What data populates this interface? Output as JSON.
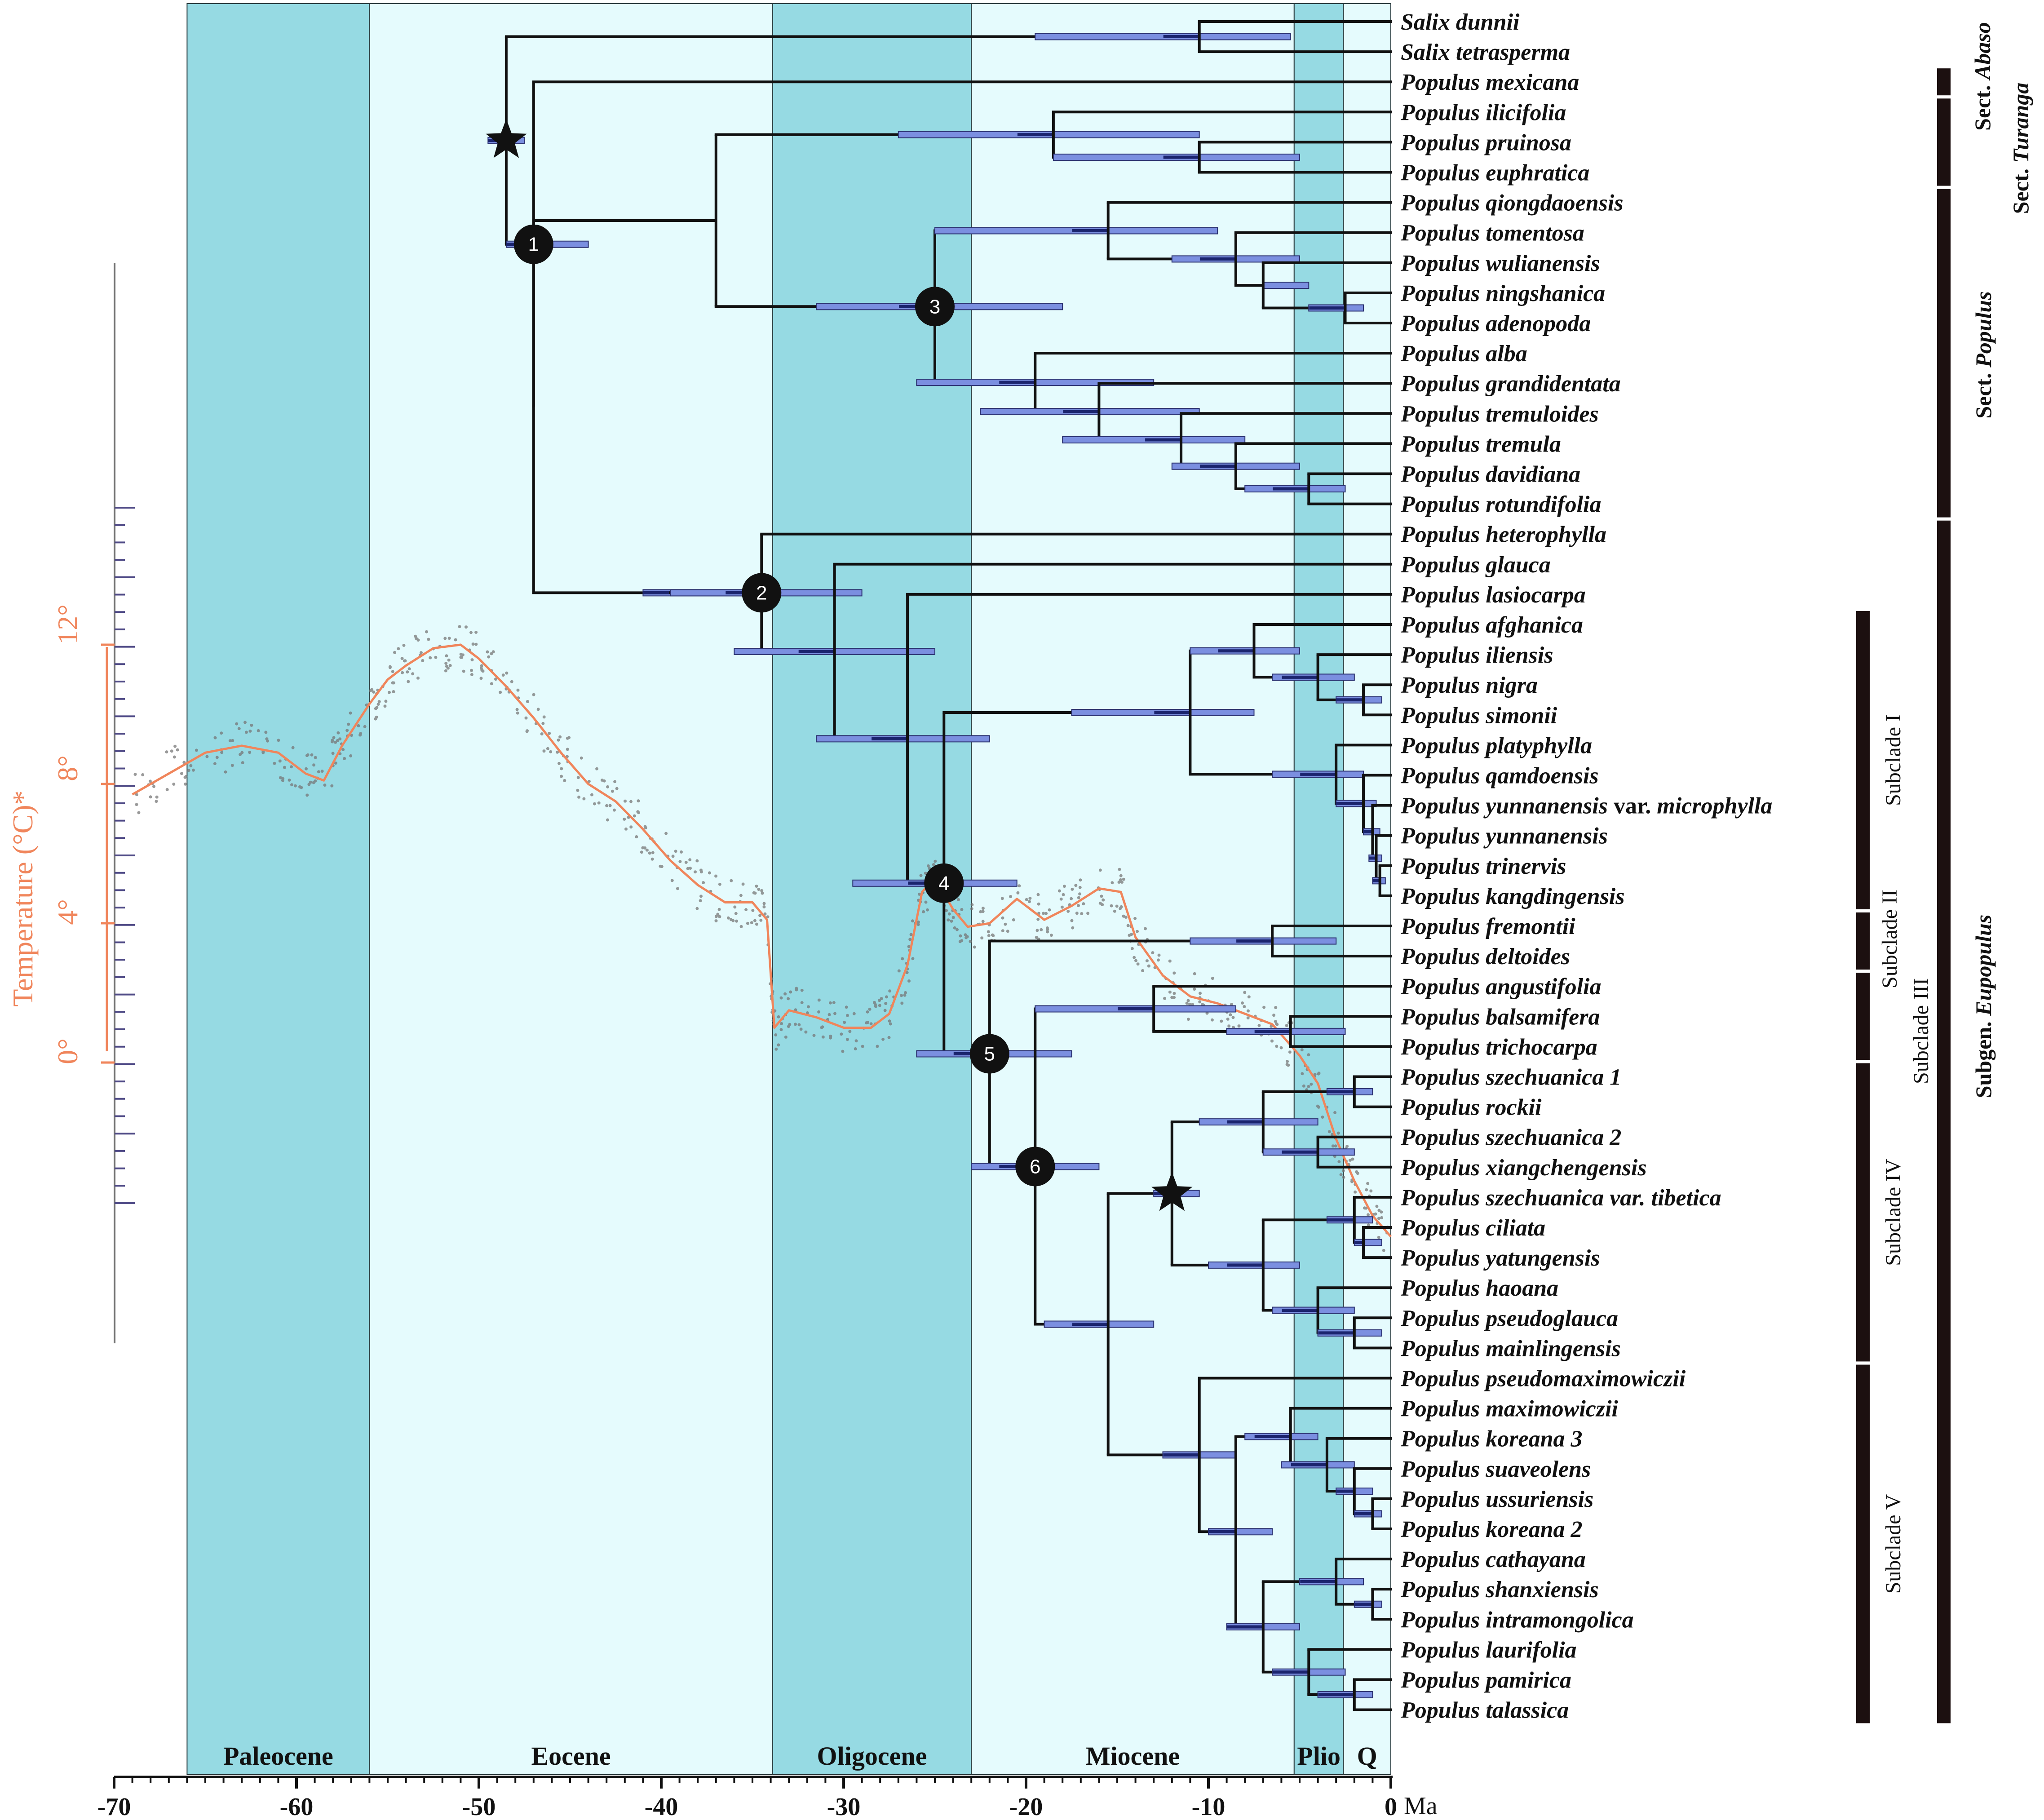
{
  "epochs": [
    {
      "name": "Paleocene",
      "start": -66,
      "end": -56,
      "shade": "dark"
    },
    {
      "name": "Eocene",
      "start": -56,
      "end": -33.9,
      "shade": "light"
    },
    {
      "name": "Oligocene",
      "start": -33.9,
      "end": -23.0,
      "shade": "dark"
    },
    {
      "name": "Miocene",
      "start": -23.0,
      "end": -5.3,
      "shade": "light"
    },
    {
      "name": "Plio",
      "start": -5.3,
      "end": -2.6,
      "shade": "dark"
    },
    {
      "name": "Q",
      "start": -2.6,
      "end": 0,
      "shade": "light"
    }
  ],
  "axis": {
    "unit": "Ma",
    "ticks": [
      -70,
      -60,
      -50,
      -40,
      -30,
      -20,
      -10,
      0
    ],
    "tick_labels": [
      "-70",
      "-60",
      "-50",
      "-40",
      "-30",
      "-20",
      "-10",
      "0"
    ]
  },
  "temperature": {
    "title": "Temperature (°C)*",
    "tick_labels": [
      "0°",
      "4°",
      "8°",
      "12°"
    ],
    "tick_values": [
      0,
      4,
      8,
      12
    ],
    "curve": [
      [
        -69,
        7.7
      ],
      [
        -67,
        8.3
      ],
      [
        -65,
        8.9
      ],
      [
        -63,
        9.1
      ],
      [
        -61,
        8.9
      ],
      [
        -59.5,
        8.3
      ],
      [
        -58.5,
        8.1
      ],
      [
        -57.5,
        9.1
      ],
      [
        -56,
        10.3
      ],
      [
        -55,
        11.0
      ],
      [
        -54,
        11.4
      ],
      [
        -52.5,
        11.9
      ],
      [
        -51,
        12.0
      ],
      [
        -50,
        11.6
      ],
      [
        -48.5,
        10.8
      ],
      [
        -47,
        9.9
      ],
      [
        -45.5,
        8.9
      ],
      [
        -44,
        8.0
      ],
      [
        -42.5,
        7.5
      ],
      [
        -41,
        6.7
      ],
      [
        -39.5,
        5.8
      ],
      [
        -38,
        5.1
      ],
      [
        -36.5,
        4.6
      ],
      [
        -35,
        4.6
      ],
      [
        -34.2,
        4.1
      ],
      [
        -33.8,
        1.0
      ],
      [
        -33,
        1.5
      ],
      [
        -31.5,
        1.3
      ],
      [
        -30,
        1.0
      ],
      [
        -28.5,
        1.0
      ],
      [
        -27.5,
        1.4
      ],
      [
        -26.5,
        2.8
      ],
      [
        -25.7,
        4.9
      ],
      [
        -25,
        5.3
      ],
      [
        -24,
        4.4
      ],
      [
        -23.2,
        3.9
      ],
      [
        -22,
        4.0
      ],
      [
        -20.5,
        4.7
      ],
      [
        -19,
        4.1
      ],
      [
        -17.5,
        4.5
      ],
      [
        -16,
        5.0
      ],
      [
        -14.8,
        4.9
      ],
      [
        -14,
        3.6
      ],
      [
        -12.5,
        2.5
      ],
      [
        -11,
        1.9
      ],
      [
        -9.5,
        1.7
      ],
      [
        -8,
        1.4
      ],
      [
        -6.5,
        1.1
      ],
      [
        -5,
        0.2
      ],
      [
        -4,
        -0.6
      ],
      [
        -3,
        -2.2
      ],
      [
        -2,
        -3.4
      ],
      [
        -1,
        -4.4
      ],
      [
        0,
        -5.0
      ]
    ]
  },
  "taxa": [
    {
      "name": "Salix dunnii"
    },
    {
      "name": "Salix tetrasperma"
    },
    {
      "name": "Populus mexicana"
    },
    {
      "name": "Populus ilicifolia"
    },
    {
      "name": "Populus pruinosa"
    },
    {
      "name": "Populus euphratica"
    },
    {
      "name": "Populus qiongdaoensis"
    },
    {
      "name": "Populus tomentosa"
    },
    {
      "name": "Populus wulianensis"
    },
    {
      "name": "Populus ningshanica"
    },
    {
      "name": "Populus adenopoda"
    },
    {
      "name": "Populus alba"
    },
    {
      "name": "Populus grandidentata"
    },
    {
      "name": "Populus tremuloides"
    },
    {
      "name": "Populus tremula"
    },
    {
      "name": "Populus davidiana"
    },
    {
      "name": "Populus rotundifolia"
    },
    {
      "name": "Populus heterophylla"
    },
    {
      "name": "Populus glauca"
    },
    {
      "name": "Populus lasiocarpa"
    },
    {
      "name": "Populus afghanica"
    },
    {
      "name": "Populus iliensis"
    },
    {
      "name": "Populus nigra"
    },
    {
      "name": "Populus simonii"
    },
    {
      "name": "Populus platyphylla"
    },
    {
      "name": "Populus qamdoensis"
    },
    {
      "name": "Populus yunnanensis",
      "extra": " var. ",
      "extra2": "microphylla"
    },
    {
      "name": "Populus yunnanensis"
    },
    {
      "name": "Populus trinervis"
    },
    {
      "name": "Populus kangdingensis"
    },
    {
      "name": "Populus fremontii"
    },
    {
      "name": "Populus deltoides"
    },
    {
      "name": "Populus angustifolia"
    },
    {
      "name": "Populus balsamifera"
    },
    {
      "name": "Populus trichocarpa"
    },
    {
      "name": "Populus szechuanica 1"
    },
    {
      "name": "Populus rockii"
    },
    {
      "name": "Populus szechuanica 2"
    },
    {
      "name": "Populus xiangchengensis"
    },
    {
      "name": "Populus szechuanica var. tibetica"
    },
    {
      "name": "Populus ciliata"
    },
    {
      "name": "Populus yatungensis"
    },
    {
      "name": "Populus haoana"
    },
    {
      "name": "Populus pseudoglauca"
    },
    {
      "name": "Populus mainlingensis"
    },
    {
      "name": "Populus pseudomaximowiczii"
    },
    {
      "name": "Populus maximowiczii"
    },
    {
      "name": "Populus koreana 3"
    },
    {
      "name": "Populus suaveolens"
    },
    {
      "name": "Populus ussuriensis"
    },
    {
      "name": "Populus koreana 2"
    },
    {
      "name": "Populus cathayana"
    },
    {
      "name": "Populus shanxiensis"
    },
    {
      "name": "Populus intramongolica"
    },
    {
      "name": "Populus laurifolia"
    },
    {
      "name": "Populus pamirica"
    },
    {
      "name": "Populus talassica"
    }
  ],
  "tree": {
    "nodes": [
      {
        "id": "root",
        "age": -48.5,
        "c": [
          "n_sal",
          "n1"
        ],
        "bar": [
          -49.5,
          -47.5
        ],
        "marker": "star"
      },
      {
        "id": "n_sal",
        "age": -10.5,
        "c": [
          0,
          1
        ],
        "bar": [
          -19.5,
          -5.5
        ]
      },
      {
        "id": "n1",
        "age": -47.0,
        "c": [
          2,
          "n1b"
        ],
        "bar": [
          -48.5,
          -44.0
        ],
        "marker": "1"
      },
      {
        "id": "n1b",
        "age": -47.0,
        "c": [
          "nT",
          "nP"
        ]
      },
      {
        "id": "nT",
        "age": -37.0,
        "c": [
          "nTur",
          "n3"
        ]
      },
      {
        "id": "nTur",
        "age": -18.5,
        "c": [
          3,
          "nTur2"
        ],
        "bar": [
          -27.0,
          -10.5
        ]
      },
      {
        "id": "nTur2",
        "age": -10.5,
        "c": [
          4,
          5
        ],
        "bar": [
          -18.5,
          -5.0
        ]
      },
      {
        "id": "n3",
        "age": -25.0,
        "c": [
          "nA",
          "nB"
        ],
        "bar": [
          -31.5,
          -18.0
        ],
        "marker": "3"
      },
      {
        "id": "nA",
        "age": -15.5,
        "c": [
          6,
          "nA2"
        ],
        "bar": [
          -25.0,
          -9.5
        ]
      },
      {
        "id": "nA2",
        "age": -8.5,
        "c": [
          7,
          "nA3"
        ],
        "bar": [
          -12.0,
          -5.0
        ]
      },
      {
        "id": "nA3",
        "age": -7.0,
        "c": [
          8,
          "nA4"
        ],
        "bar": [
          -7.0,
          -4.5
        ]
      },
      {
        "id": "nA4",
        "age": -2.5,
        "c": [
          9,
          10
        ],
        "bar": [
          -4.5,
          -1.5
        ]
      },
      {
        "id": "nB",
        "age": -19.5,
        "c": [
          11,
          "nB2"
        ],
        "bar": [
          -26.0,
          -13.0
        ]
      },
      {
        "id": "nB2",
        "age": -16.0,
        "c": [
          12,
          "nB3"
        ],
        "bar": [
          -22.5,
          -10.5
        ]
      },
      {
        "id": "nB3",
        "age": -11.5,
        "c": [
          13,
          "nB4"
        ],
        "bar": [
          -18.0,
          -8.0
        ]
      },
      {
        "id": "nB4",
        "age": -8.5,
        "c": [
          14,
          "nB5"
        ],
        "bar": [
          -12.0,
          -5.0
        ]
      },
      {
        "id": "nB5",
        "age": -4.5,
        "c": [
          15,
          16
        ],
        "bar": [
          -8.0,
          -2.5
        ]
      },
      {
        "id": "nP",
        "age": -39.5,
        "c": [
          "n2"
        ],
        "bar": [
          -41.0,
          -34.5
        ]
      },
      {
        "id": "n2",
        "age": -34.5,
        "c": [
          17,
          "n2b"
        ],
        "bar": [
          -39.5,
          -29.0
        ],
        "marker": "2"
      },
      {
        "id": "n2b",
        "age": -30.5,
        "c": [
          18,
          "n2c"
        ],
        "bar": [
          -36.0,
          -25.0
        ]
      },
      {
        "id": "n2c",
        "age": -26.5,
        "c": [
          19,
          "n4"
        ],
        "bar": [
          -31.5,
          -22.0
        ]
      },
      {
        "id": "n4",
        "age": -24.5,
        "c": [
          "nI",
          "n5"
        ],
        "bar": [
          -29.5,
          -20.5
        ],
        "marker": "4"
      },
      {
        "id": "nI",
        "age": -11.0,
        "c": [
          "nIa",
          "nIb"
        ],
        "bar": [
          -17.5,
          -7.5
        ]
      },
      {
        "id": "nIa",
        "age": -7.5,
        "c": [
          20,
          "nIa2"
        ],
        "bar": [
          -11.0,
          -5.0
        ]
      },
      {
        "id": "nIa2",
        "age": -4.0,
        "c": [
          21,
          "nIa3"
        ],
        "bar": [
          -6.5,
          -2.0
        ]
      },
      {
        "id": "nIa3",
        "age": -1.5,
        "c": [
          22,
          23
        ],
        "bar": [
          -3.0,
          -0.5
        ]
      },
      {
        "id": "nIb",
        "age": -3.0,
        "c": [
          24,
          "nIb2"
        ],
        "bar": [
          -6.5,
          -1.5
        ]
      },
      {
        "id": "nIb2",
        "age": -1.5,
        "c": [
          25,
          "nIb3"
        ],
        "bar": [
          -3.0,
          -0.8
        ]
      },
      {
        "id": "nIb3",
        "age": -1.0,
        "c": [
          26,
          "nIb4"
        ],
        "bar": [
          -1.5,
          -0.6
        ]
      },
      {
        "id": "nIb4",
        "age": -0.8,
        "c": [
          27,
          "nIb5"
        ],
        "bar": [
          -1.2,
          -0.5
        ]
      },
      {
        "id": "nIb5",
        "age": -0.6,
        "c": [
          28,
          29
        ],
        "bar": [
          -1.0,
          -0.3
        ]
      },
      {
        "id": "n5",
        "age": -22.0,
        "c": [
          "nII",
          "n6"
        ],
        "bar": [
          -26.0,
          -17.5
        ],
        "marker": "5"
      },
      {
        "id": "nII",
        "age": -6.5,
        "c": [
          30,
          31
        ],
        "bar": [
          -11.0,
          -3.0
        ]
      },
      {
        "id": "n6",
        "age": -19.5,
        "c": [
          "nIII",
          "nIVV"
        ],
        "bar": [
          -23.0,
          -16.0
        ],
        "marker": "6"
      },
      {
        "id": "nIII",
        "age": -13.0,
        "c": [
          32,
          "nIII2"
        ],
        "bar": [
          -19.5,
          -8.5
        ]
      },
      {
        "id": "nIII2",
        "age": -5.5,
        "c": [
          33,
          34
        ],
        "bar": [
          -9.0,
          -2.5
        ]
      },
      {
        "id": "nIVV",
        "age": -15.5,
        "c": [
          "nIV",
          "nV"
        ],
        "bar": [
          -19.0,
          -13.0
        ]
      },
      {
        "id": "nIV",
        "age": -12.0,
        "c": [
          "nIVa",
          "nIVb"
        ],
        "bar": [
          -13.0,
          -10.5
        ],
        "marker": "star"
      },
      {
        "id": "nIVa",
        "age": -7.0,
        "c": [
          "nIVa2",
          "nIVa3"
        ],
        "bar": [
          -10.5,
          -4.0
        ]
      },
      {
        "id": "nIVa2",
        "age": -2.0,
        "c": [
          35,
          36
        ],
        "bar": [
          -3.5,
          -1.0
        ]
      },
      {
        "id": "nIVa3",
        "age": -4.0,
        "c": [
          37,
          38
        ],
        "bar": [
          -7.0,
          -2.0
        ]
      },
      {
        "id": "nIVb",
        "age": -7.0,
        "c": [
          "nIVb2",
          "nIVb3"
        ],
        "bar": [
          -10.0,
          -5.0
        ]
      },
      {
        "id": "nIVb2",
        "age": -2.0,
        "c": [
          39,
          "nIVb4"
        ],
        "bar": [
          -3.5,
          -1.0
        ]
      },
      {
        "id": "nIVb4",
        "age": -1.5,
        "c": [
          40,
          41
        ],
        "bar": [
          -2.0,
          -0.5
        ]
      },
      {
        "id": "nIVb3",
        "age": -4.0,
        "c": [
          42,
          "nIVb5"
        ],
        "bar": [
          -6.5,
          -2.0
        ]
      },
      {
        "id": "nIVb5",
        "age": -2.0,
        "c": [
          43,
          44
        ],
        "bar": [
          -4.0,
          -0.5
        ]
      },
      {
        "id": "nV",
        "age": -10.5,
        "c": [
          45,
          "nV2"
        ],
        "bar": [
          -12.5,
          -8.5
        ]
      },
      {
        "id": "nV2",
        "age": -8.5,
        "c": [
          "nVa",
          "nVb"
        ],
        "bar": [
          -10.0,
          -6.5
        ]
      },
      {
        "id": "nVa",
        "age": -5.5,
        "c": [
          46,
          "nVa2"
        ],
        "bar": [
          -8.0,
          -4.0
        ]
      },
      {
        "id": "nVa2",
        "age": -3.5,
        "c": [
          47,
          "nVa3"
        ],
        "bar": [
          -6.0,
          -2.0
        ]
      },
      {
        "id": "nVa3",
        "age": -2.0,
        "c": [
          48,
          "nVa4"
        ],
        "bar": [
          -3.0,
          -1.0
        ]
      },
      {
        "id": "nVa4",
        "age": -1.0,
        "c": [
          49,
          50
        ],
        "bar": [
          -2.0,
          -0.5
        ]
      },
      {
        "id": "nVb",
        "age": -7.0,
        "c": [
          "nVb2",
          "nVb3"
        ],
        "bar": [
          -9.0,
          -5.0
        ]
      },
      {
        "id": "nVb2",
        "age": -3.0,
        "c": [
          51,
          "nVb4"
        ],
        "bar": [
          -5.0,
          -1.5
        ]
      },
      {
        "id": "nVb4",
        "age": -1.0,
        "c": [
          52,
          53
        ],
        "bar": [
          -2.0,
          -0.5
        ]
      },
      {
        "id": "nVb3",
        "age": -4.5,
        "c": [
          54,
          "nVb5"
        ],
        "bar": [
          -6.5,
          -2.5
        ]
      },
      {
        "id": "nVb5",
        "age": -2.0,
        "c": [
          55,
          56
        ],
        "bar": [
          -4.0,
          -1.0
        ]
      }
    ]
  },
  "subclades": [
    {
      "label": "Subclade I",
      "first": 20,
      "last": 29
    },
    {
      "label": "Subclade II",
      "first": 30,
      "last": 31
    },
    {
      "label": "Subclade III",
      "first": 32,
      "last": 34
    },
    {
      "label": "Subclade IV",
      "first": 35,
      "last": 44
    },
    {
      "label": "Subclade V",
      "first": 45,
      "last": 56
    }
  ],
  "sections": [
    {
      "prefix": "Sect. ",
      "italic": "Abaso",
      "first": 2,
      "last": 2
    },
    {
      "prefix": "Sect. ",
      "italic": "Turanga",
      "first": 3,
      "last": 5
    },
    {
      "prefix": "Sect. ",
      "italic": "Populus",
      "first": 6,
      "last": 16
    },
    {
      "prefix": "Subgen. ",
      "italic": "Eupopulus",
      "first": 17,
      "last": 56
    }
  ],
  "colors": {
    "epoch_dark": "#96dae3",
    "epoch_light": "#e5fbfd",
    "branch": "#111111",
    "hpd_bar": "#7b8fe0",
    "hpd_center": "#1b246e",
    "temp_curve": "#f0855b",
    "temp_points": "#777777",
    "temp_axis": "#4f4a86",
    "clade_bar": "#1c1010"
  }
}
